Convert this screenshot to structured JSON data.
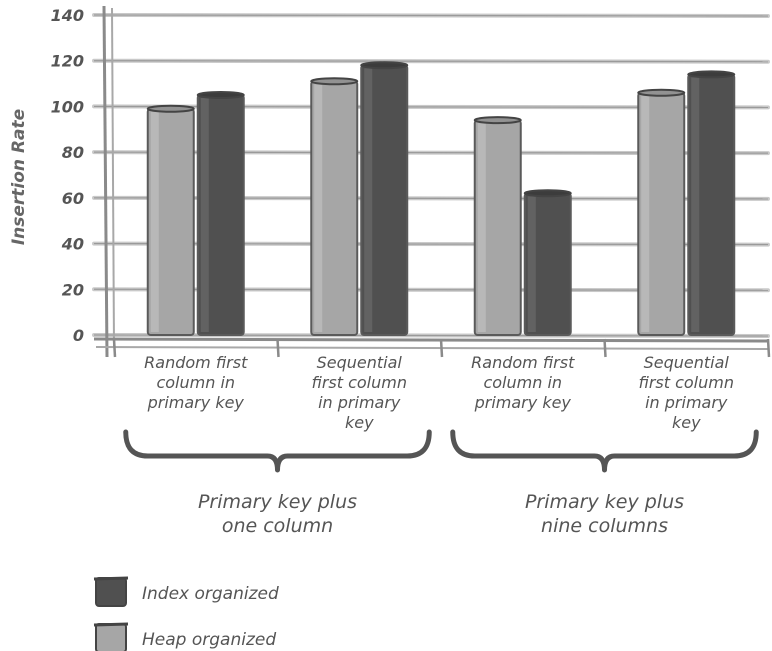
{
  "chart_data": {
    "type": "bar",
    "ylabel": "Insertion Rate",
    "ylim": [
      0,
      140
    ],
    "yticks": [
      0,
      20,
      40,
      60,
      80,
      100,
      120,
      140
    ],
    "grid": true,
    "categories": [
      [
        "Random first",
        "column in",
        "primary key"
      ],
      [
        "Sequential",
        "first column",
        "in primary",
        "key"
      ],
      [
        "Random first",
        "column in",
        "primary key"
      ],
      [
        "Sequential",
        "first column",
        "in primary",
        "key"
      ]
    ],
    "groups": [
      {
        "label": [
          "Primary key plus",
          "one column"
        ],
        "categories": [
          0,
          1
        ]
      },
      {
        "label": [
          "Primary key plus",
          "nine columns"
        ],
        "categories": [
          2,
          3
        ]
      }
    ],
    "series": [
      {
        "name": "Heap organized",
        "color": "#a6a6a6",
        "values": [
          99,
          111,
          94,
          106
        ]
      },
      {
        "name": "Index organized",
        "color": "#505050",
        "values": [
          105,
          118,
          62,
          114
        ]
      }
    ],
    "legend_order": [
      1,
      0
    ],
    "legend_position": "bottom-left"
  }
}
